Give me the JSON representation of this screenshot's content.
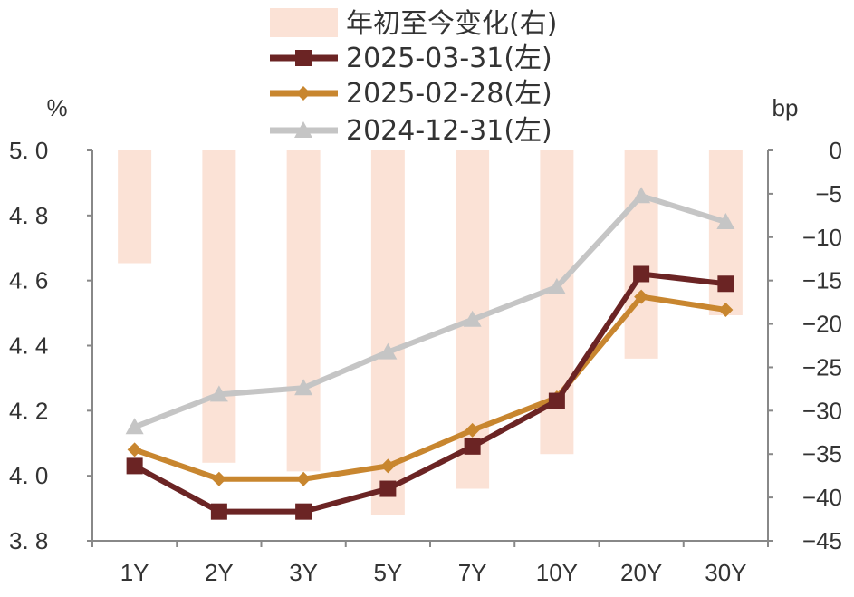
{
  "chart_data": {
    "type": "bar+line",
    "categories": [
      "1Y",
      "2Y",
      "3Y",
      "5Y",
      "7Y",
      "10Y",
      "20Y",
      "30Y"
    ],
    "left_axis": {
      "unit": "%",
      "ylim": [
        3.8,
        5.0
      ],
      "ticks": [
        "5. 0",
        "4. 8",
        "4. 6",
        "4. 4",
        "4. 2",
        "4. 0",
        "3. 8"
      ]
    },
    "right_axis": {
      "unit": "bp",
      "ylim": [
        -45,
        0
      ],
      "ticks": [
        "0",
        "−5",
        "−10",
        "−15",
        "−20",
        "−25",
        "−30",
        "−35",
        "−40",
        "−45"
      ]
    },
    "bars": {
      "name": "年初至今变化(右)",
      "color": "#fbe2d6",
      "values": [
        -13,
        -36,
        -37,
        -42,
        -39,
        -35,
        -24,
        -19
      ]
    },
    "series": [
      {
        "name": "2025-03-31(左)",
        "color": "#6b2424",
        "marker": "square",
        "values": [
          4.03,
          3.89,
          3.89,
          3.96,
          4.09,
          4.23,
          4.62,
          4.59
        ]
      },
      {
        "name": "2025-02-28(左)",
        "color": "#c8862f",
        "marker": "diamond",
        "values": [
          4.08,
          3.99,
          3.99,
          4.03,
          4.14,
          4.24,
          4.55,
          4.51
        ]
      },
      {
        "name": "2024-12-31(左)",
        "color": "#c5c5c5",
        "marker": "triangle",
        "values": [
          4.15,
          4.25,
          4.27,
          4.38,
          4.48,
          4.58,
          4.86,
          4.78
        ]
      }
    ],
    "legend_position": "top"
  }
}
